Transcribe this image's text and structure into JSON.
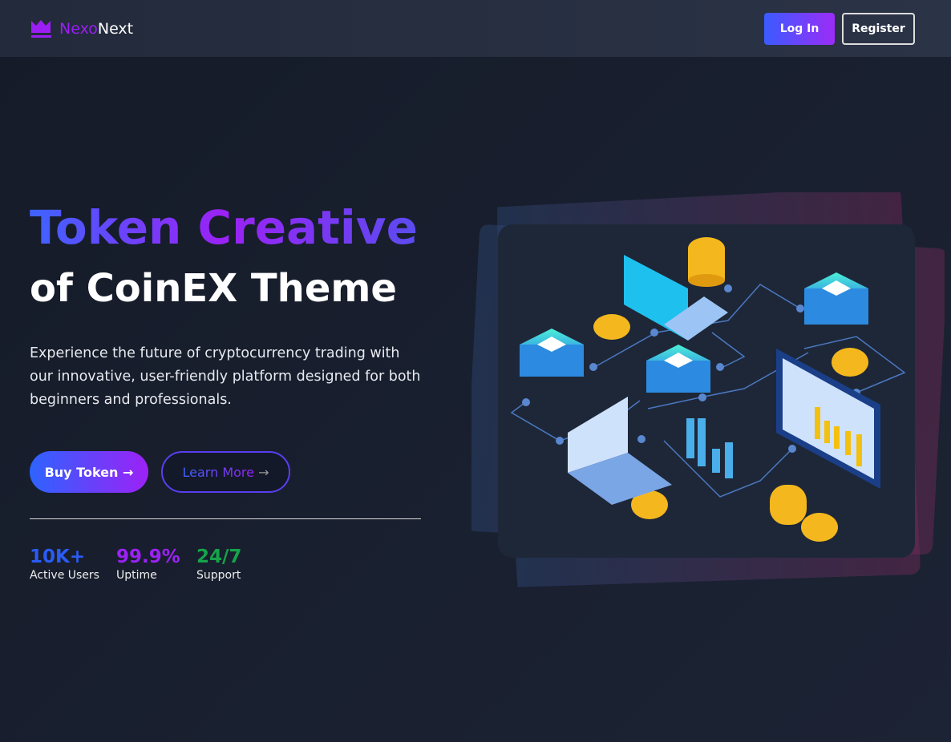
{
  "brand": {
    "part1": "Nexo",
    "part2": "Next",
    "icon": "crown-icon"
  },
  "nav": {
    "login": "Log In",
    "register": "Register"
  },
  "hero": {
    "title_line1": "Token Creative",
    "title_line2": "of CoinEX Theme",
    "description": "Experience the future of cryptocurrency trading with our innovative, user-friendly platform designed for both beginners and professionals.",
    "buy_label": "Buy Token",
    "learn_label": "Learn More",
    "arrow": "→"
  },
  "stats": [
    {
      "value": "10K+",
      "label": "Active Users",
      "color": "#2a5cf5"
    },
    {
      "value": "99.9%",
      "label": "Uptime",
      "color": "#9b22f5"
    },
    {
      "value": "24/7",
      "label": "Support",
      "color": "#16a34a"
    }
  ],
  "colors": {
    "accent_blue": "#3b5bff",
    "accent_purple": "#9b2cf7"
  }
}
